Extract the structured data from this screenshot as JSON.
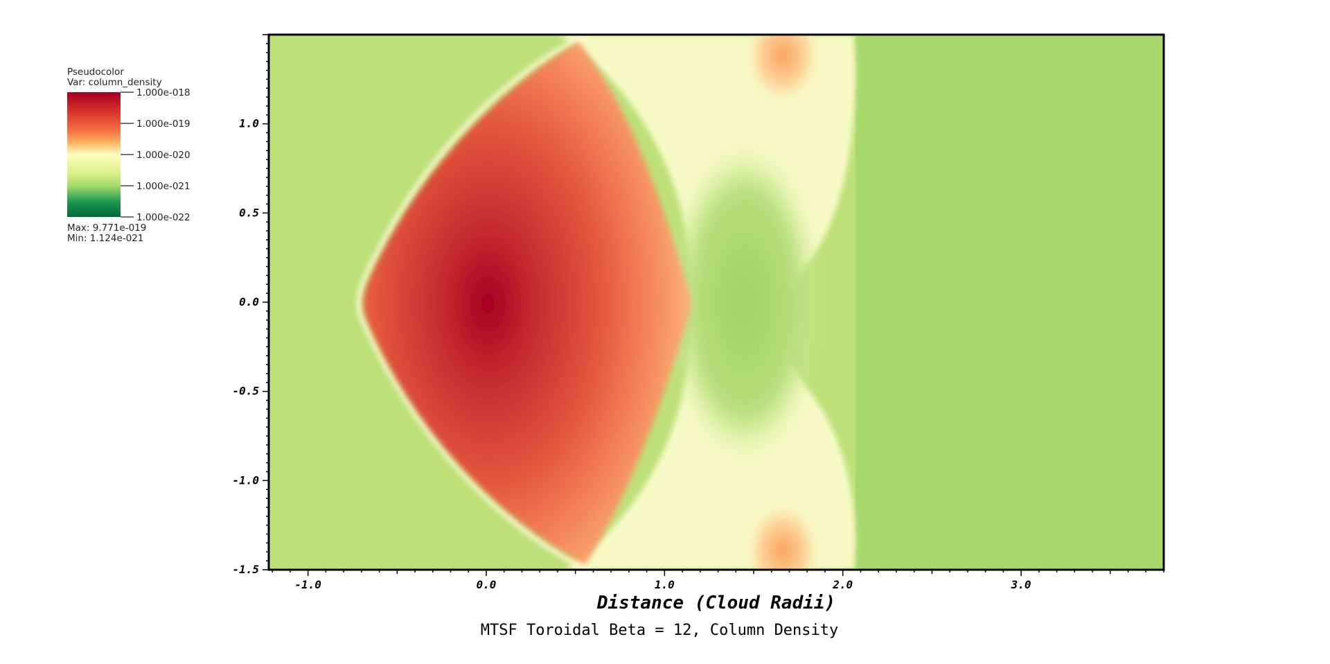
{
  "chart_data": {
    "type": "heatmap",
    "title": "MTSF Toroidal Beta = 12, Column Density",
    "xlabel": "Distance (Cloud Radii)",
    "ylabel": "",
    "xlim": [
      -1.22,
      3.8
    ],
    "ylim": [
      -1.5,
      1.5
    ],
    "x_ticks": [
      -1.0,
      0.0,
      1.0,
      2.0,
      3.0
    ],
    "x_tick_labels": [
      "-1.0",
      "0.0",
      "1.0",
      "2.0",
      "3.0"
    ],
    "y_ticks": [
      1.0,
      0.5,
      0.0,
      -0.5,
      -1.0,
      -1.5
    ],
    "y_tick_labels": [
      "1.0",
      "0.5",
      "0.0",
      "-0.5",
      "-1.0",
      "-1.5"
    ],
    "legend": {
      "title": "Pseudocolor",
      "variable": "Var: column_density",
      "scale_labels": [
        "1.000e-018",
        "1.000e-019",
        "1.000e-020",
        "1.000e-021",
        "1.000e-022"
      ],
      "max_label": "Max:  9.771e-019",
      "min_label": "Min:  1.124e-021",
      "placement": "top-left",
      "colors": [
        "#a50026",
        "#f46d43",
        "#fdae61",
        "#ffffbf",
        "#a6d96a",
        "#1a9850",
        "#006837"
      ]
    },
    "features": {
      "background_color": "#bde078",
      "dense_core_center": [
        -0.2,
        0.0
      ],
      "dense_core_peak_density": "9.771e-019",
      "min_density": "1.124e-021"
    }
  }
}
